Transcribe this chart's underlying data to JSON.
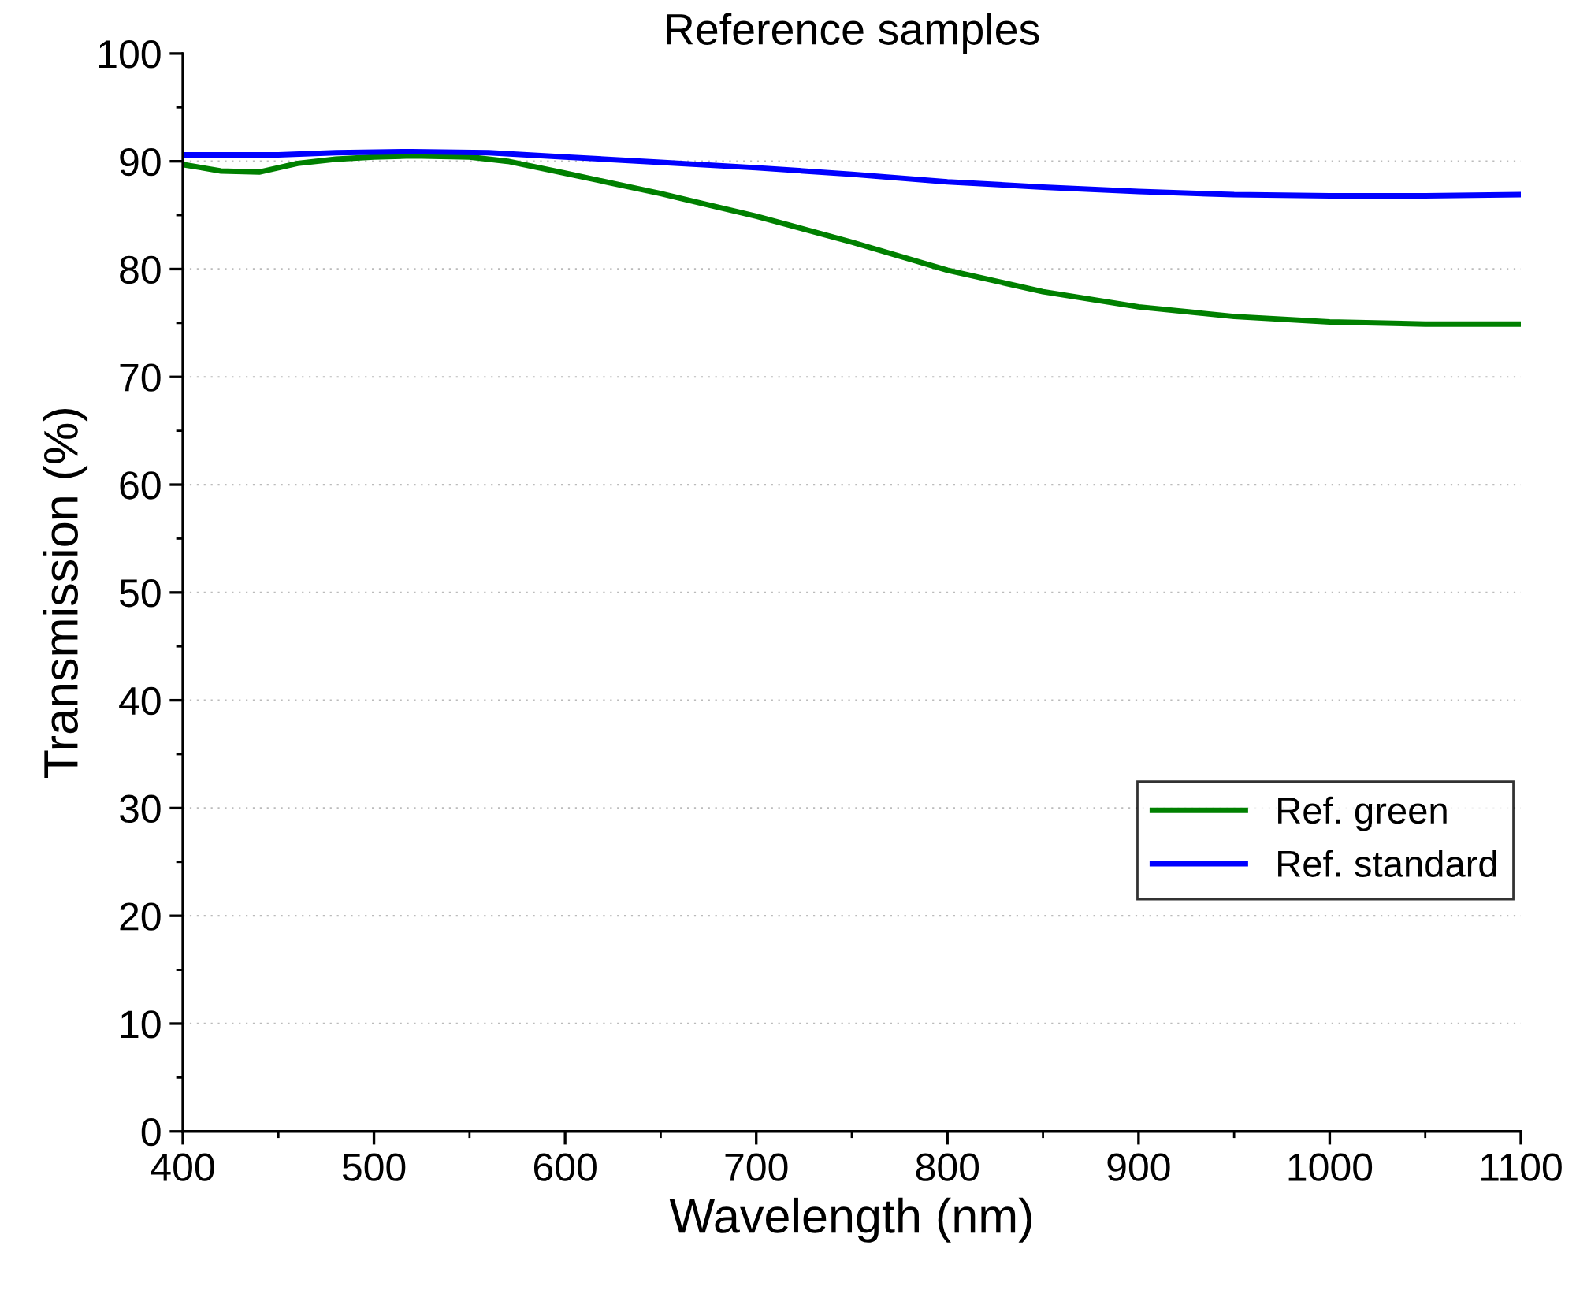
{
  "chart_data": {
    "type": "line",
    "title": "Reference samples",
    "xlabel": "Wavelength (nm)",
    "ylabel": "Transmission (%)",
    "xlim": [
      400,
      1100
    ],
    "xticks": [
      400,
      500,
      600,
      700,
      800,
      900,
      1000,
      1100
    ],
    "ylim": [
      0,
      100
    ],
    "yticks": [
      0,
      10,
      20,
      30,
      40,
      50,
      60,
      70,
      80,
      90,
      100
    ],
    "grid": "y",
    "legend": "right",
    "line_style": "solid",
    "marker": "none",
    "series": [
      {
        "name": "Ref. green",
        "color": "#008000",
        "x": [
          400,
          420,
          440,
          460,
          480,
          500,
          520,
          550,
          570,
          600,
          650,
          700,
          750,
          800,
          850,
          900,
          950,
          1000,
          1050,
          1100
        ],
        "values": [
          89.7,
          89.1,
          89.0,
          89.8,
          90.2,
          90.4,
          90.5,
          90.4,
          90.0,
          88.9,
          87.0,
          84.9,
          82.5,
          79.9,
          77.9,
          76.5,
          75.6,
          75.1,
          74.9,
          74.9
        ]
      },
      {
        "name": "Ref. standard",
        "color": "#0000ff",
        "x": [
          400,
          450,
          480,
          520,
          560,
          600,
          650,
          700,
          750,
          800,
          850,
          900,
          950,
          1000,
          1050,
          1100
        ],
        "values": [
          90.6,
          90.6,
          90.8,
          90.9,
          90.8,
          90.4,
          89.9,
          89.4,
          88.8,
          88.1,
          87.6,
          87.2,
          86.9,
          86.8,
          86.8,
          86.9
        ]
      }
    ]
  }
}
